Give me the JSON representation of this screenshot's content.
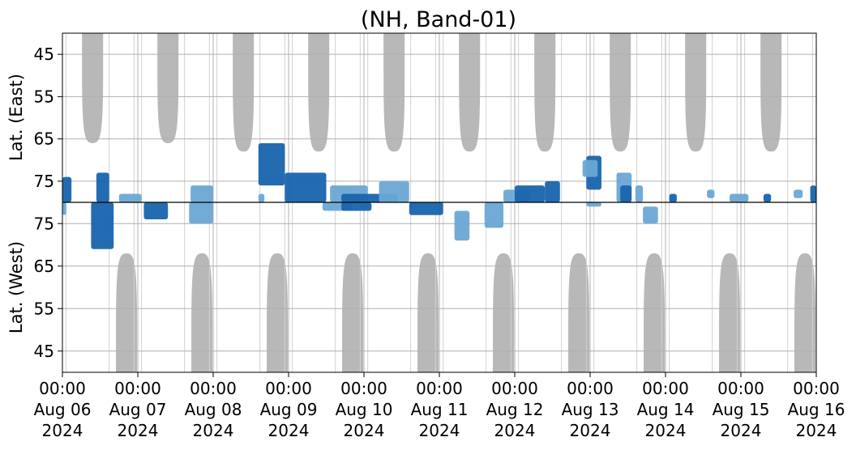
{
  "chart_data": {
    "type": "heatmap",
    "title": "(NH, Band-01)",
    "panels": [
      {
        "name": "east",
        "ylabel": "Lat. (East)",
        "yticks": [
          "45",
          "55",
          "65",
          "75"
        ],
        "yrange": [
          40,
          80
        ],
        "direction": "increasing-downward"
      },
      {
        "name": "west",
        "ylabel": "Lat. (West)",
        "yticks": [
          "75",
          "65",
          "55",
          "45"
        ],
        "yrange": [
          80,
          40
        ],
        "direction": "decreasing-downward"
      }
    ],
    "x_ticks": [
      {
        "time": "00:00",
        "date": "Aug 06",
        "year": "2024"
      },
      {
        "time": "00:00",
        "date": "Aug 07",
        "year": "2024"
      },
      {
        "time": "00:00",
        "date": "Aug 08",
        "year": "2024"
      },
      {
        "time": "00:00",
        "date": "Aug 09",
        "year": "2024"
      },
      {
        "time": "00:00",
        "date": "Aug 10",
        "year": "2024"
      },
      {
        "time": "00:00",
        "date": "Aug 11",
        "year": "2024"
      },
      {
        "time": "00:00",
        "date": "Aug 12",
        "year": "2024"
      },
      {
        "time": "00:00",
        "date": "Aug 13",
        "year": "2024"
      },
      {
        "time": "00:00",
        "date": "Aug 14",
        "year": "2024"
      },
      {
        "time": "00:00",
        "date": "Aug 15",
        "year": "2024"
      },
      {
        "time": "00:00",
        "date": "Aug 16",
        "year": "2024"
      }
    ],
    "x_range": [
      "2024-08-06 00:00",
      "2024-08-16 00:00"
    ],
    "grid": true,
    "colors": {
      "no_data": "#b8b8b8",
      "light": "#6aa8d4",
      "dark": "#1864ad",
      "grid": "#b0b0b0"
    },
    "no_data_regions": {
      "east": [
        {
          "center_day": 0.4,
          "bottom_lat": 66
        },
        {
          "center_day": 1.4,
          "bottom_lat": 66
        },
        {
          "center_day": 2.4,
          "bottom_lat": 68
        },
        {
          "center_day": 3.4,
          "bottom_lat": 68
        },
        {
          "center_day": 4.4,
          "bottom_lat": 68
        },
        {
          "center_day": 5.4,
          "bottom_lat": 68
        },
        {
          "center_day": 6.4,
          "bottom_lat": 68
        },
        {
          "center_day": 7.4,
          "bottom_lat": 68
        },
        {
          "center_day": 8.4,
          "bottom_lat": 68
        },
        {
          "center_day": 9.4,
          "bottom_lat": 68
        }
      ],
      "west": [
        {
          "center_day": 0.85,
          "top_lat": 68
        },
        {
          "center_day": 1.85,
          "top_lat": 68
        },
        {
          "center_day": 2.85,
          "top_lat": 68
        },
        {
          "center_day": 3.85,
          "top_lat": 68
        },
        {
          "center_day": 4.85,
          "top_lat": 68
        },
        {
          "center_day": 5.85,
          "top_lat": 68
        },
        {
          "center_day": 6.85,
          "top_lat": 68
        },
        {
          "center_day": 7.85,
          "top_lat": 68
        },
        {
          "center_day": 8.85,
          "top_lat": 68
        },
        {
          "center_day": 9.85,
          "top_lat": 68
        }
      ]
    },
    "detections": [
      {
        "panel": "east",
        "day_start": 0.0,
        "day_end": 0.12,
        "lat_min": 74,
        "lat_max": 80,
        "intensity": "dark"
      },
      {
        "panel": "west",
        "day_start": 0.0,
        "day_end": 0.05,
        "lat_min": 77,
        "lat_max": 80,
        "intensity": "light"
      },
      {
        "panel": "east",
        "day_start": 0.45,
        "day_end": 0.62,
        "lat_min": 73,
        "lat_max": 80,
        "intensity": "dark"
      },
      {
        "panel": "west",
        "day_start": 0.38,
        "day_end": 0.68,
        "lat_min": 69,
        "lat_max": 80,
        "intensity": "dark"
      },
      {
        "panel": "east",
        "day_start": 0.75,
        "day_end": 1.05,
        "lat_min": 78,
        "lat_max": 80,
        "intensity": "light"
      },
      {
        "panel": "west",
        "day_start": 1.08,
        "day_end": 1.4,
        "lat_min": 76,
        "lat_max": 80,
        "intensity": "dark"
      },
      {
        "panel": "east",
        "day_start": 1.7,
        "day_end": 2.0,
        "lat_min": 76,
        "lat_max": 80,
        "intensity": "light"
      },
      {
        "panel": "west",
        "day_start": 1.68,
        "day_end": 2.0,
        "lat_min": 75,
        "lat_max": 80,
        "intensity": "light"
      },
      {
        "panel": "east",
        "day_start": 2.6,
        "day_end": 2.68,
        "lat_min": 78,
        "lat_max": 80,
        "intensity": "light"
      },
      {
        "panel": "east",
        "day_start": 2.6,
        "day_end": 2.95,
        "lat_min": 66,
        "lat_max": 76,
        "intensity": "dark"
      },
      {
        "panel": "east",
        "day_start": 2.95,
        "day_end": 3.5,
        "lat_min": 73,
        "lat_max": 80,
        "intensity": "dark"
      },
      {
        "panel": "west",
        "day_start": 3.45,
        "day_end": 3.85,
        "lat_min": 78,
        "lat_max": 80,
        "intensity": "light"
      },
      {
        "panel": "east",
        "day_start": 3.55,
        "day_end": 4.05,
        "lat_min": 76,
        "lat_max": 80,
        "intensity": "light"
      },
      {
        "panel": "east",
        "day_start": 3.7,
        "day_end": 4.45,
        "lat_min": 78,
        "lat_max": 80,
        "intensity": "dark"
      },
      {
        "panel": "west",
        "day_start": 3.7,
        "day_end": 4.1,
        "lat_min": 78,
        "lat_max": 80,
        "intensity": "dark"
      },
      {
        "panel": "east",
        "day_start": 4.2,
        "day_end": 4.6,
        "lat_min": 75,
        "lat_max": 80,
        "intensity": "light"
      },
      {
        "panel": "west",
        "day_start": 4.6,
        "day_end": 5.05,
        "lat_min": 77,
        "lat_max": 80,
        "intensity": "dark"
      },
      {
        "panel": "west",
        "day_start": 5.2,
        "day_end": 5.4,
        "lat_min": 71,
        "lat_max": 78,
        "intensity": "light"
      },
      {
        "panel": "west",
        "day_start": 5.6,
        "day_end": 5.85,
        "lat_min": 74,
        "lat_max": 80,
        "intensity": "light"
      },
      {
        "panel": "east",
        "day_start": 5.85,
        "day_end": 6.2,
        "lat_min": 77,
        "lat_max": 80,
        "intensity": "light"
      },
      {
        "panel": "east",
        "day_start": 6.0,
        "day_end": 6.4,
        "lat_min": 76,
        "lat_max": 80,
        "intensity": "dark"
      },
      {
        "panel": "east",
        "day_start": 6.4,
        "day_end": 6.6,
        "lat_min": 75,
        "lat_max": 80,
        "intensity": "dark"
      },
      {
        "panel": "east",
        "day_start": 6.95,
        "day_end": 7.15,
        "lat_min": 69,
        "lat_max": 77,
        "intensity": "dark"
      },
      {
        "panel": "east",
        "day_start": 6.9,
        "day_end": 7.1,
        "lat_min": 70,
        "lat_max": 74,
        "intensity": "light"
      },
      {
        "panel": "west",
        "day_start": 6.95,
        "day_end": 7.15,
        "lat_min": 79,
        "lat_max": 80,
        "intensity": "light"
      },
      {
        "panel": "east",
        "day_start": 7.35,
        "day_end": 7.55,
        "lat_min": 73,
        "lat_max": 80,
        "intensity": "light"
      },
      {
        "panel": "east",
        "day_start": 7.4,
        "day_end": 7.55,
        "lat_min": 76,
        "lat_max": 80,
        "intensity": "dark"
      },
      {
        "panel": "east",
        "day_start": 7.6,
        "day_end": 7.7,
        "lat_min": 76,
        "lat_max": 80,
        "intensity": "light"
      },
      {
        "panel": "west",
        "day_start": 7.7,
        "day_end": 7.9,
        "lat_min": 75,
        "lat_max": 79,
        "intensity": "light"
      },
      {
        "panel": "east",
        "day_start": 8.05,
        "day_end": 8.15,
        "lat_min": 78,
        "lat_max": 80,
        "intensity": "dark"
      },
      {
        "panel": "east",
        "day_start": 8.55,
        "day_end": 8.65,
        "lat_min": 77,
        "lat_max": 79,
        "intensity": "light"
      },
      {
        "panel": "east",
        "day_start": 8.85,
        "day_end": 9.1,
        "lat_min": 78,
        "lat_max": 80,
        "intensity": "light"
      },
      {
        "panel": "east",
        "day_start": 9.3,
        "day_end": 9.4,
        "lat_min": 78,
        "lat_max": 80,
        "intensity": "dark"
      },
      {
        "panel": "east",
        "day_start": 9.7,
        "day_end": 9.82,
        "lat_min": 77,
        "lat_max": 79,
        "intensity": "light"
      },
      {
        "panel": "east",
        "day_start": 9.92,
        "day_end": 10.0,
        "lat_min": 76,
        "lat_max": 80,
        "intensity": "dark"
      }
    ]
  }
}
